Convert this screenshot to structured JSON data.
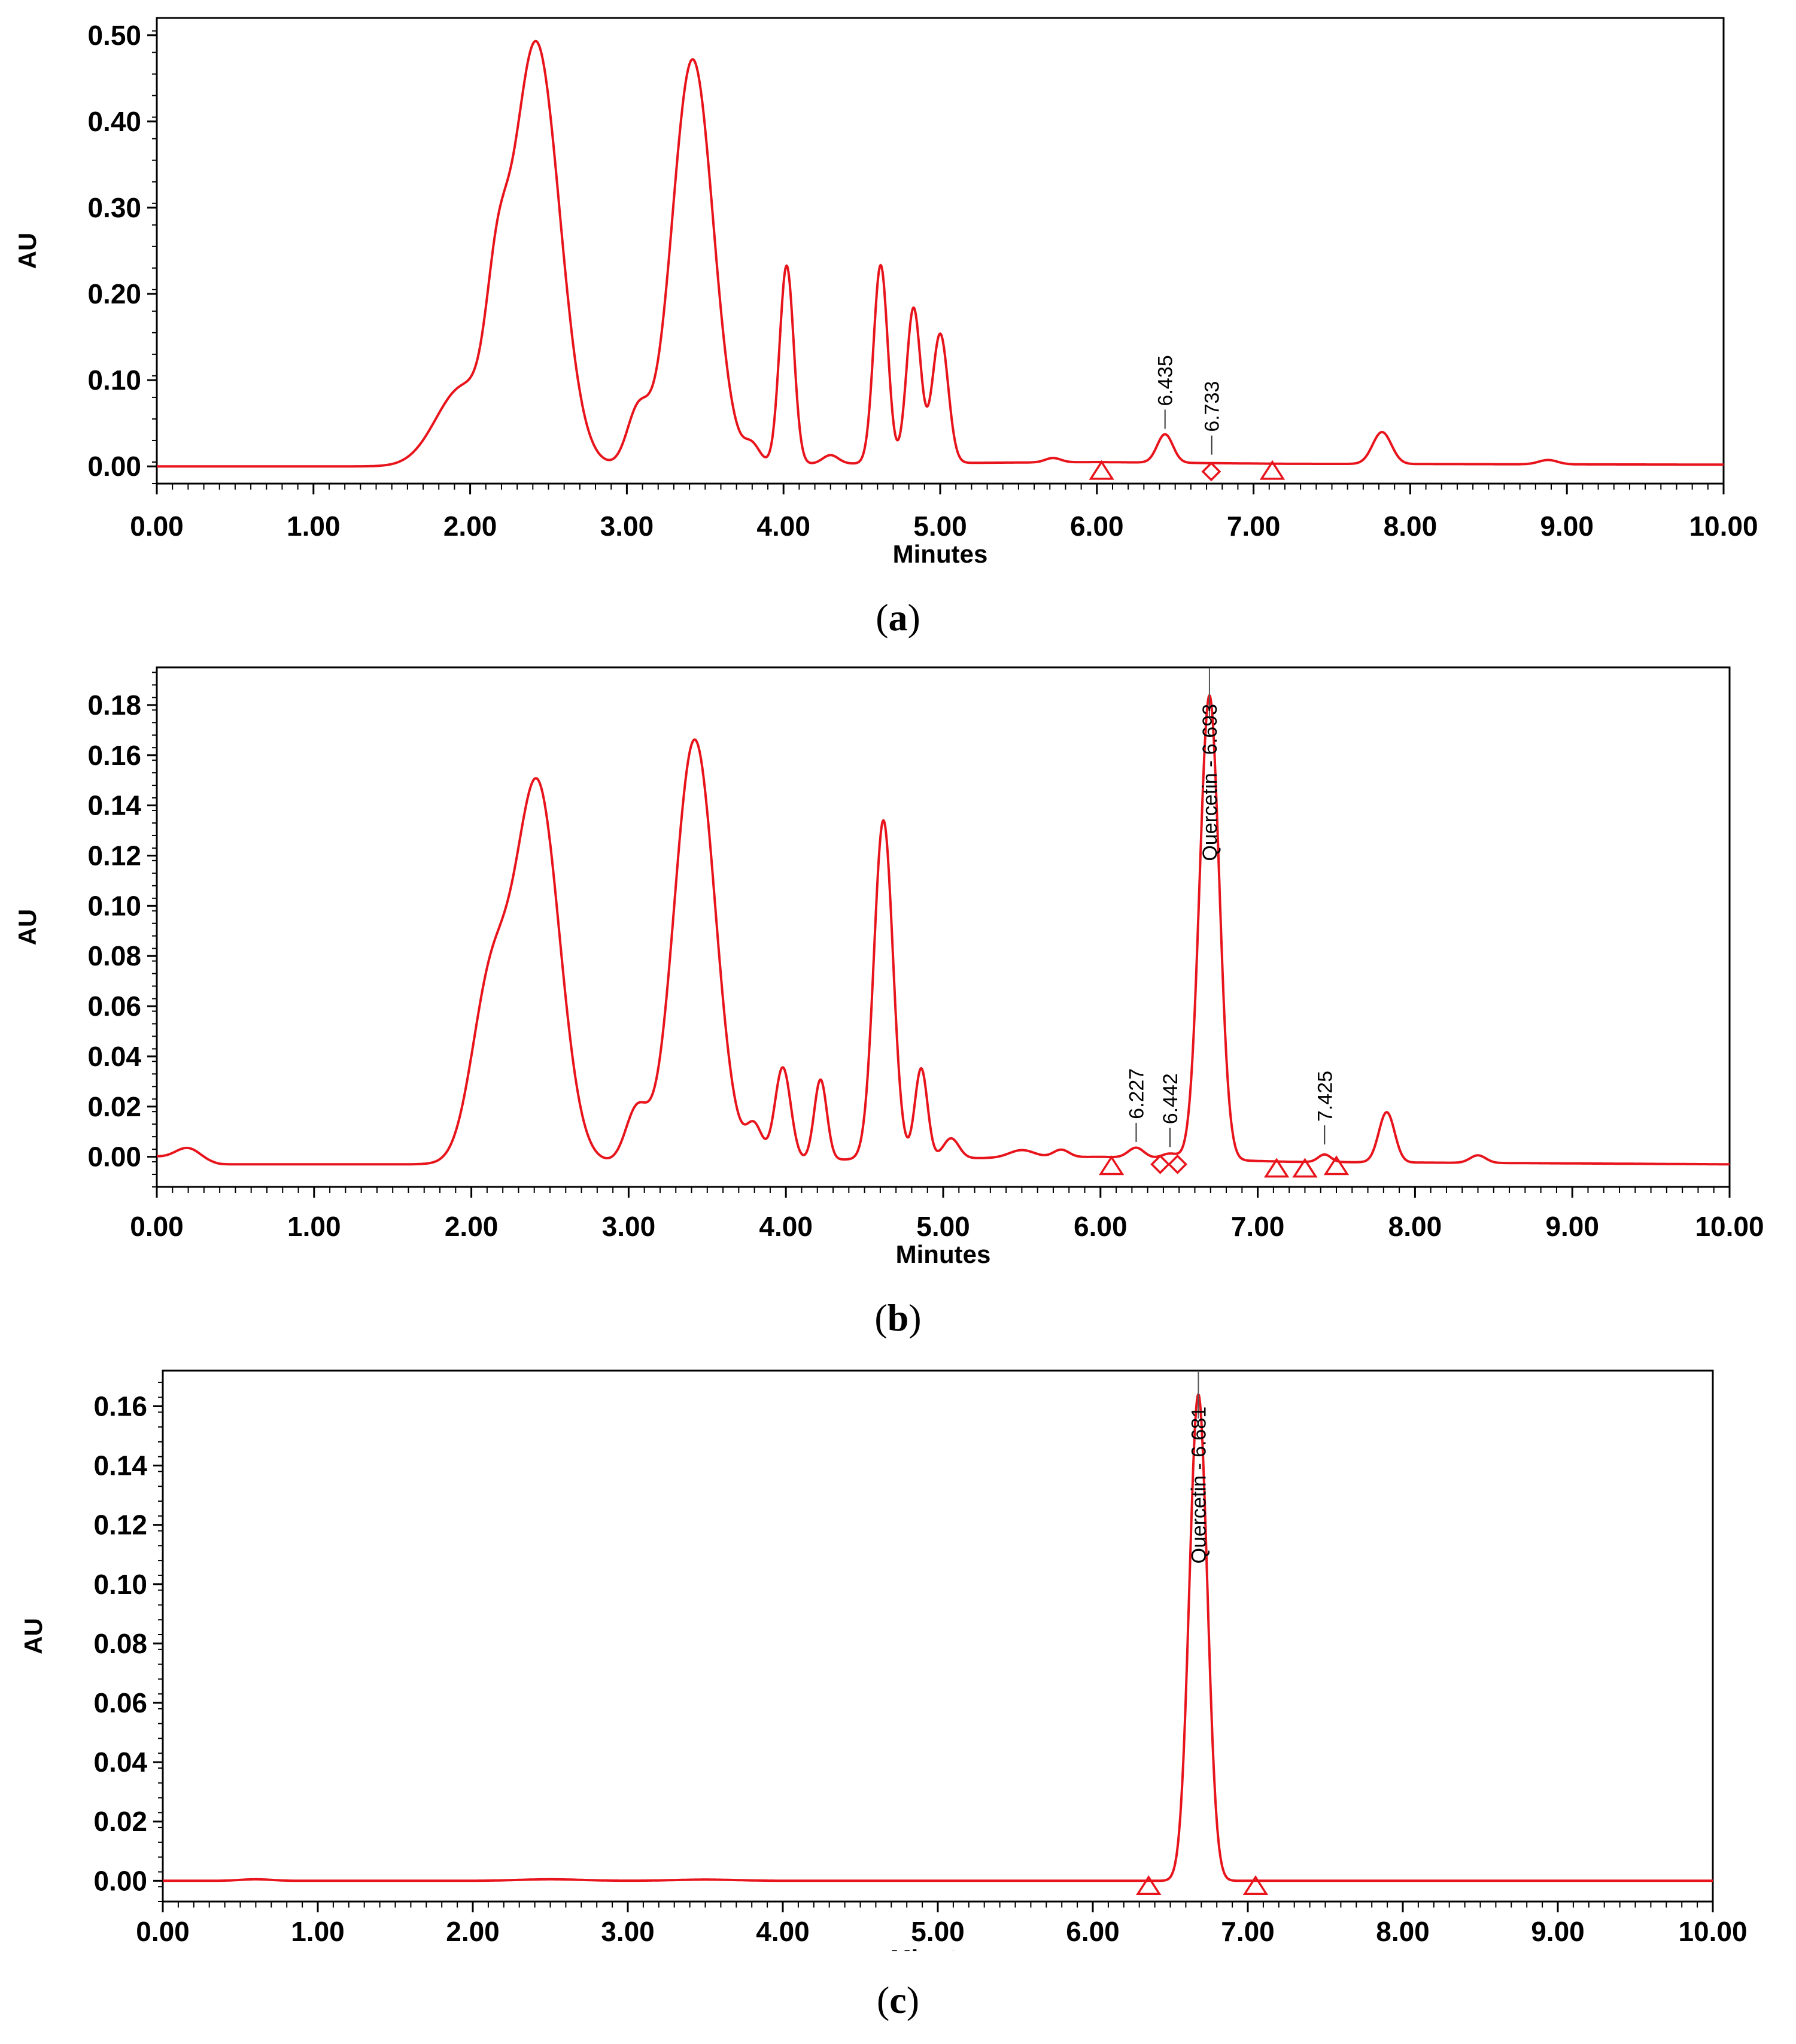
{
  "colors": {
    "trace": "#e8141c",
    "axis": "#000000",
    "background": "#ffffff"
  },
  "chart_data": [
    {
      "panel": "a",
      "type": "line",
      "xlabel": "Minutes",
      "ylabel": "AU",
      "xlim": [
        0,
        10
      ],
      "ylim": [
        -0.02,
        0.52
      ],
      "x_ticks": [
        "0.00",
        "1.00",
        "2.00",
        "3.00",
        "4.00",
        "5.00",
        "6.00",
        "7.00",
        "8.00",
        "9.00",
        "10.00"
      ],
      "y_ticks": [
        "0.00",
        "0.10",
        "0.20",
        "0.30",
        "0.40",
        "0.50"
      ],
      "peaks_note": "peaks listed as [retention time min, height AU, width min]",
      "baseline": [
        [
          0,
          0.0
        ],
        [
          1.6,
          0.0
        ],
        [
          6.0,
          0.005
        ],
        [
          7.2,
          0.003
        ],
        [
          10,
          0.002
        ]
      ],
      "peaks": [
        [
          1.95,
          0.09,
          0.17
        ],
        [
          2.17,
          0.12,
          0.07
        ],
        [
          2.42,
          0.49,
          0.15
        ],
        [
          3.07,
          0.06,
          0.07
        ],
        [
          3.42,
          0.47,
          0.13
        ],
        [
          3.8,
          0.02,
          0.05
        ],
        [
          4.02,
          0.23,
          0.045
        ],
        [
          4.3,
          0.01,
          0.05
        ],
        [
          4.62,
          0.23,
          0.045
        ],
        [
          4.83,
          0.18,
          0.045
        ],
        [
          5.0,
          0.15,
          0.05
        ],
        [
          5.72,
          0.005,
          0.05
        ],
        [
          6.435,
          0.033,
          0.05
        ],
        [
          7.82,
          0.037,
          0.06
        ],
        [
          8.88,
          0.005,
          0.06
        ]
      ],
      "annotations": [
        {
          "label": "6.435",
          "x": 6.435,
          "y": 0.038,
          "marker": "line"
        },
        {
          "label": "6.733",
          "x": 6.733,
          "y": 0.008,
          "marker": "line"
        }
      ],
      "markers": [
        {
          "shape": "triangle",
          "x": 6.03,
          "y": -0.006
        },
        {
          "shape": "diamond",
          "x": 6.73,
          "y": -0.006
        },
        {
          "shape": "triangle",
          "x": 7.12,
          "y": -0.006
        }
      ]
    },
    {
      "panel": "b",
      "type": "line",
      "xlabel": "Minutes",
      "ylabel": "AU",
      "xlim": [
        0,
        10
      ],
      "ylim": [
        -0.012,
        0.195
      ],
      "x_ticks": [
        "0.00",
        "1.00",
        "2.00",
        "3.00",
        "4.00",
        "5.00",
        "6.00",
        "7.00",
        "8.00",
        "9.00",
        "10.00"
      ],
      "y_ticks": [
        "0.00",
        "0.02",
        "0.04",
        "0.06",
        "0.08",
        "0.10",
        "0.12",
        "0.14",
        "0.16",
        "0.18"
      ],
      "peaks_note": "peaks listed as [retention time min, height AU, width min]",
      "baseline": [
        [
          0,
          0.0
        ],
        [
          0.4,
          -0.003
        ],
        [
          1.6,
          -0.003
        ],
        [
          6.0,
          0.0
        ],
        [
          7.2,
          -0.002
        ],
        [
          10,
          -0.003
        ]
      ],
      "peaks": [
        [
          0.2,
          0.005,
          0.08
        ],
        [
          2.12,
          0.068,
          0.12
        ],
        [
          2.42,
          0.15,
          0.14
        ],
        [
          3.05,
          0.02,
          0.07
        ],
        [
          3.42,
          0.168,
          0.13
        ],
        [
          3.8,
          0.013,
          0.05
        ],
        [
          3.98,
          0.037,
          0.05
        ],
        [
          4.22,
          0.032,
          0.04
        ],
        [
          4.62,
          0.135,
          0.06
        ],
        [
          4.86,
          0.036,
          0.04
        ],
        [
          5.05,
          0.008,
          0.05
        ],
        [
          5.5,
          0.003,
          0.08
        ],
        [
          5.75,
          0.003,
          0.05
        ],
        [
          6.227,
          0.004,
          0.05
        ],
        [
          6.442,
          0.002,
          0.05
        ],
        [
          6.693,
          0.185,
          0.062
        ],
        [
          7.425,
          0.003,
          0.04
        ],
        [
          7.82,
          0.02,
          0.05
        ],
        [
          8.4,
          0.003,
          0.05
        ]
      ],
      "annotations": [
        {
          "label": "6.227",
          "x": 6.227,
          "y": 0.004,
          "marker": "line"
        },
        {
          "label": "6.442",
          "x": 6.442,
          "y": 0.002,
          "marker": "line"
        },
        {
          "label": "Quercetin - 6.693",
          "x": 6.693,
          "y": 0.19,
          "marker": "line",
          "inside_peak": true
        },
        {
          "label": "7.425",
          "x": 7.425,
          "y": 0.003,
          "marker": "line"
        }
      ],
      "markers": [
        {
          "shape": "triangle",
          "x": 6.07,
          "y": -0.004
        },
        {
          "shape": "diamond",
          "x": 6.38,
          "y": -0.003
        },
        {
          "shape": "diamond",
          "x": 6.49,
          "y": -0.003
        },
        {
          "shape": "triangle",
          "x": 7.12,
          "y": -0.005
        },
        {
          "shape": "triangle",
          "x": 7.3,
          "y": -0.005
        },
        {
          "shape": "triangle",
          "x": 7.5,
          "y": -0.004
        }
      ]
    },
    {
      "panel": "c",
      "type": "line",
      "xlabel": "Minutes",
      "ylabel": "AU",
      "xlim": [
        0,
        10
      ],
      "ylim": [
        -0.007,
        0.172
      ],
      "x_ticks": [
        "0.00",
        "1.00",
        "2.00",
        "3.00",
        "4.00",
        "5.00",
        "6.00",
        "7.00",
        "8.00",
        "9.00",
        "10.00"
      ],
      "y_ticks": [
        "0.00",
        "0.02",
        "0.04",
        "0.06",
        "0.08",
        "0.10",
        "0.12",
        "0.14",
        "0.16"
      ],
      "peaks_note": "peaks listed as [retention time min, height AU, width min]",
      "baseline": [
        [
          0,
          0.0
        ],
        [
          10,
          0.0
        ]
      ],
      "peaks": [
        [
          0.6,
          0.0005,
          0.1
        ],
        [
          2.5,
          0.0005,
          0.2
        ],
        [
          3.5,
          0.0004,
          0.2
        ],
        [
          6.681,
          0.164,
          0.058
        ]
      ],
      "annotations": [
        {
          "label": "Quercetin - 6.681",
          "x": 6.681,
          "y": 0.168,
          "marker": "line",
          "inside_peak": true
        }
      ],
      "markers": [
        {
          "shape": "triangle",
          "x": 6.36,
          "y": -0.002
        },
        {
          "shape": "triangle",
          "x": 7.05,
          "y": -0.002
        }
      ]
    }
  ],
  "captions": [
    {
      "open": "(",
      "letter": "a",
      "close": ")"
    },
    {
      "open": "(",
      "letter": "b",
      "close": ")"
    },
    {
      "open": "(",
      "letter": "c",
      "close": ")"
    }
  ]
}
